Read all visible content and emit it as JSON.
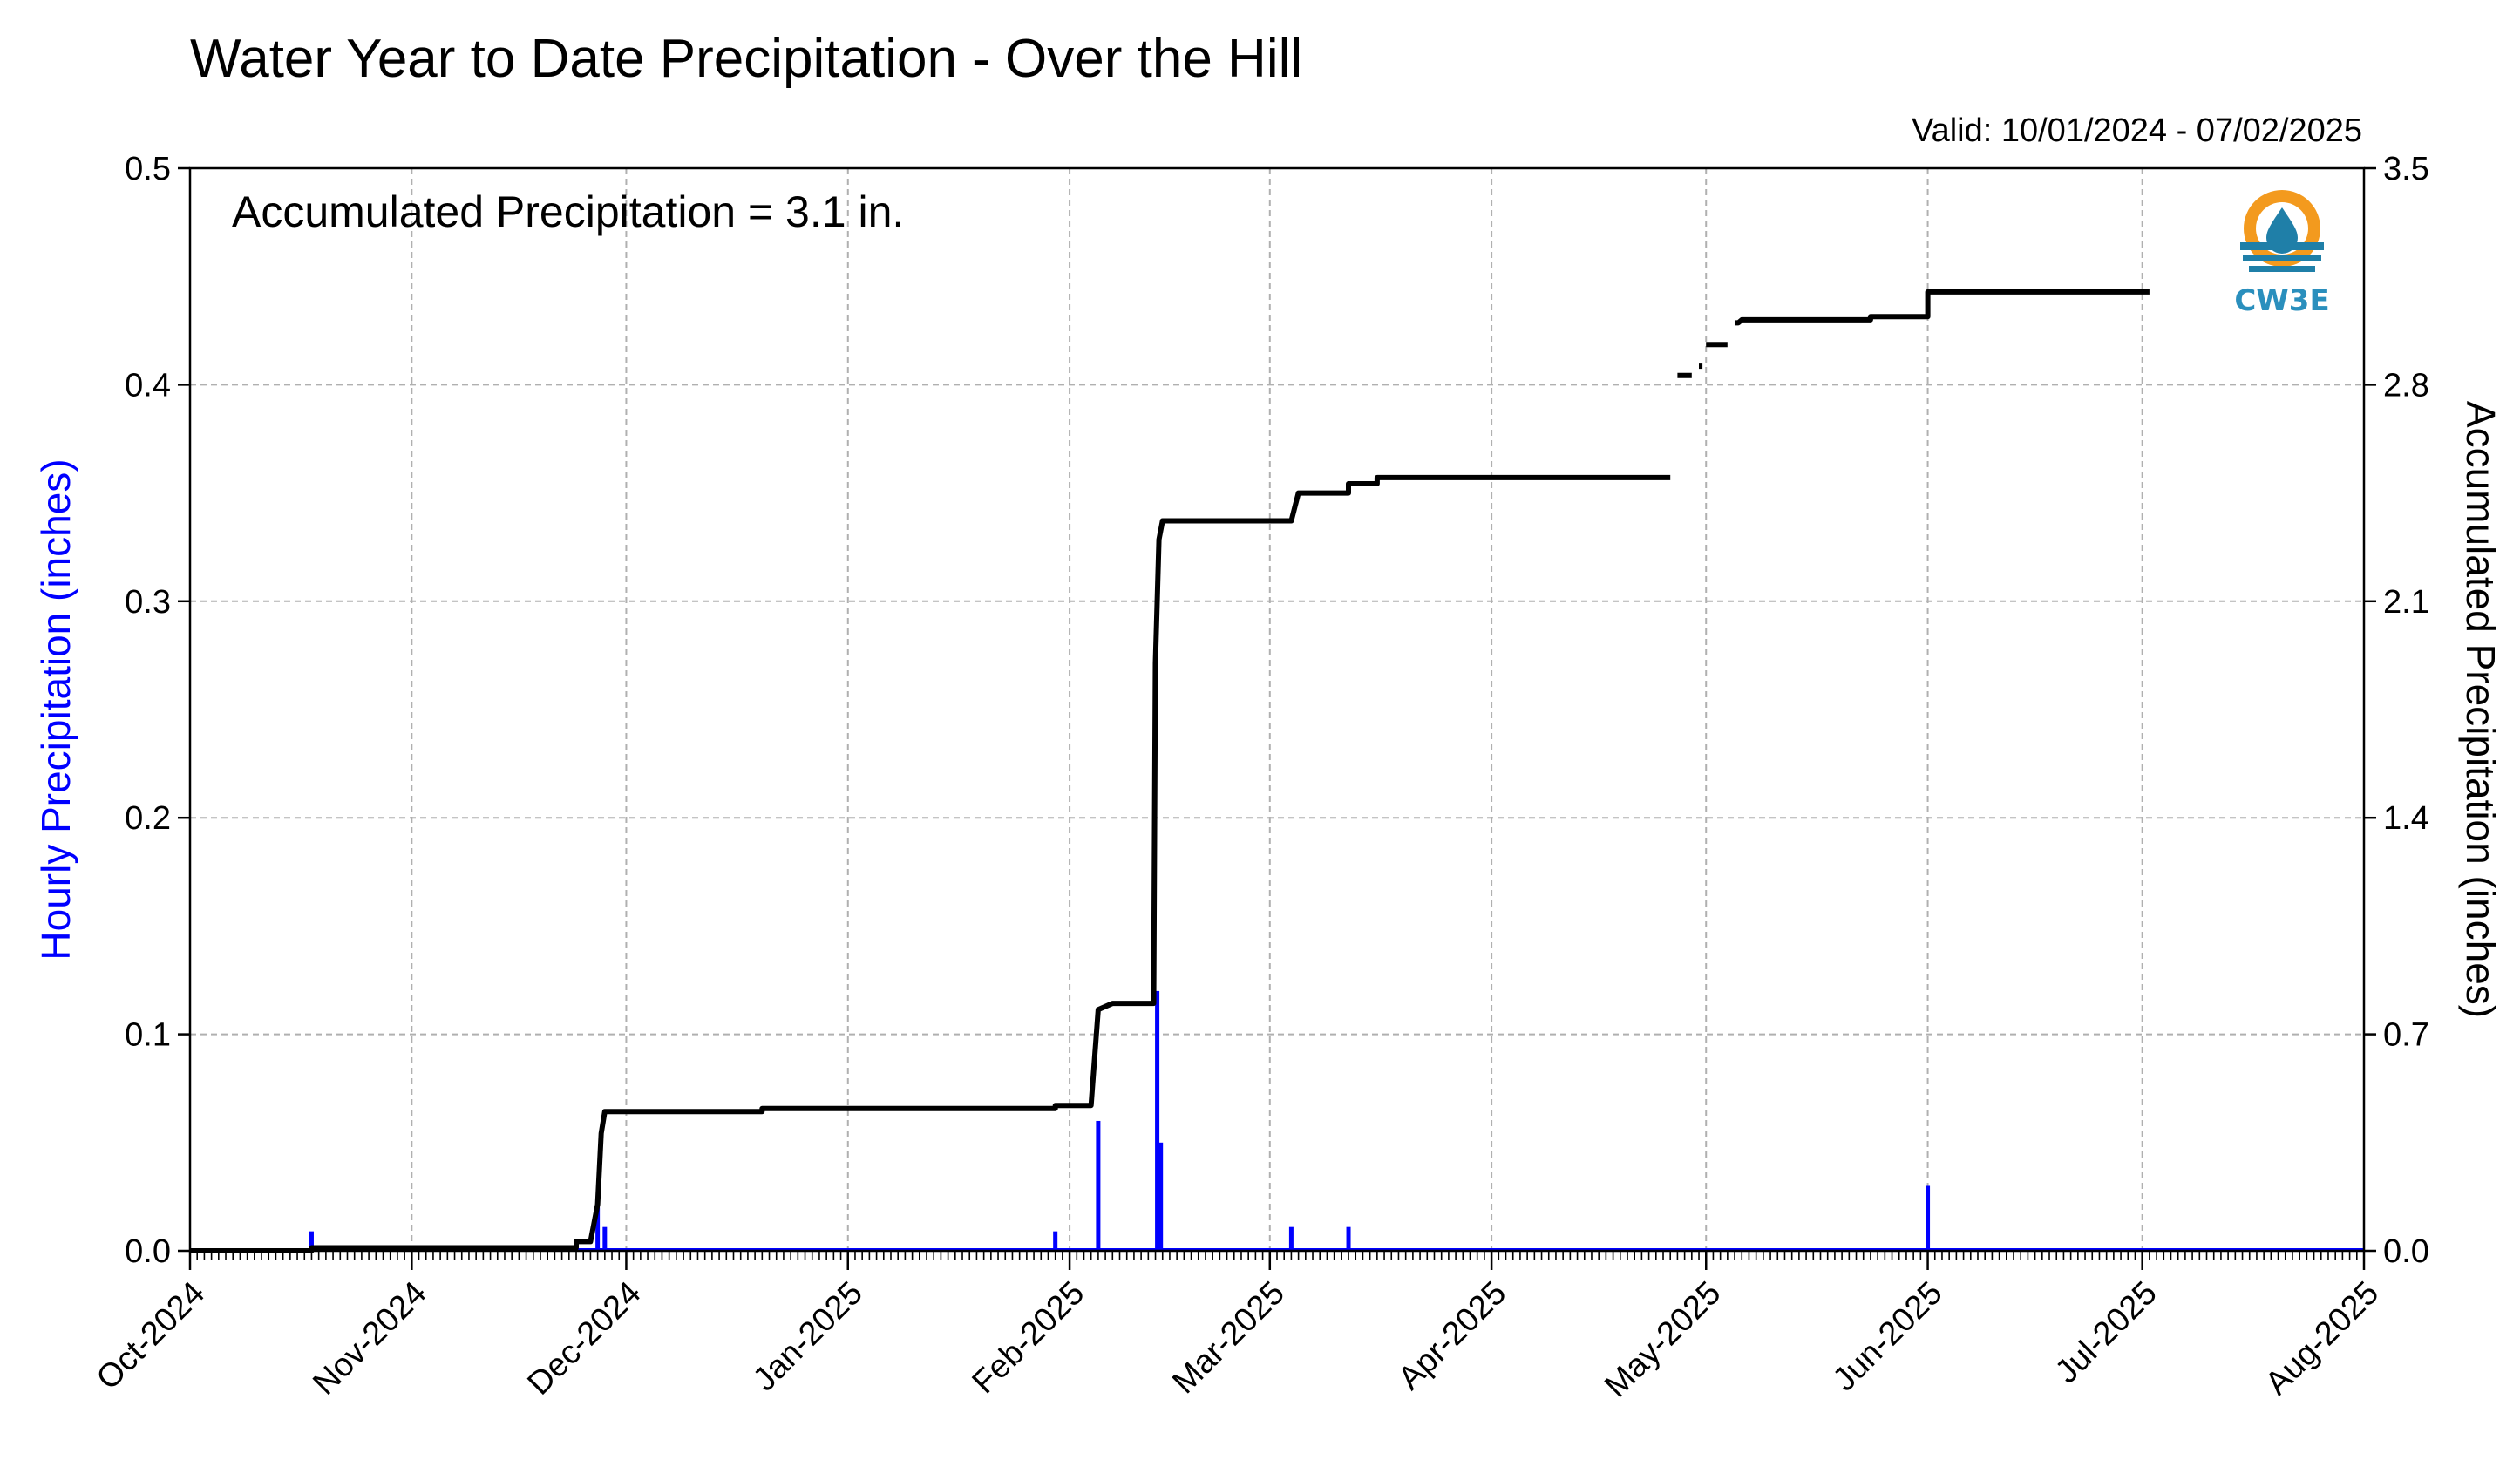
{
  "chart_data": {
    "type": "bar+line",
    "title": "Water Year to Date Precipitation - Over the Hill",
    "valid_label": "Valid: 10/01/2024 - 07/02/2025",
    "annotation": "Accumulated Precipitation = 3.1 in.",
    "ylabel_left": "Hourly Precipitation (inches)",
    "ylabel_right": "Accumulated Precipitation (inches)",
    "left_color": "#0000ff",
    "line_color": "#000000",
    "xlim": [
      "2024-10-01",
      "2025-08-01"
    ],
    "ylim_left": [
      0,
      0.5
    ],
    "ylim_right": [
      0,
      3.5
    ],
    "grid": true,
    "x_ticks": [
      {
        "date": "2024-10-01",
        "label": "Oct-2024"
      },
      {
        "date": "2024-11-01",
        "label": "Nov-2024"
      },
      {
        "date": "2024-12-01",
        "label": "Dec-2024"
      },
      {
        "date": "2025-01-01",
        "label": "Jan-2025"
      },
      {
        "date": "2025-02-01",
        "label": "Feb-2025"
      },
      {
        "date": "2025-03-01",
        "label": "Mar-2025"
      },
      {
        "date": "2025-04-01",
        "label": "Apr-2025"
      },
      {
        "date": "2025-05-01",
        "label": "May-2025"
      },
      {
        "date": "2025-06-01",
        "label": "Jun-2025"
      },
      {
        "date": "2025-07-01",
        "label": "Jul-2025"
      },
      {
        "date": "2025-08-01",
        "label": "Aug-2025"
      }
    ],
    "y_ticks_left": [
      "0.0",
      "0.1",
      "0.2",
      "0.3",
      "0.4",
      "0.5"
    ],
    "y_ticks_right": [
      "0.0",
      "0.7",
      "1.4",
      "2.1",
      "2.8",
      "3.5"
    ],
    "series": [
      {
        "name": "Hourly Precipitation",
        "axis": "left",
        "kind": "bar",
        "points": [
          {
            "x": "2024-10-18",
            "y": 0.009
          },
          {
            "x": "2024-11-27",
            "y": 0.02
          },
          {
            "x": "2024-11-28",
            "y": 0.011
          },
          {
            "x": "2025-01-30",
            "y": 0.009
          },
          {
            "x": "2025-02-05",
            "y": 0.06
          },
          {
            "x": "2025-02-13 06:00",
            "y": 0.12
          },
          {
            "x": "2025-02-13 18:00",
            "y": 0.05
          },
          {
            "x": "2025-03-04",
            "y": 0.011
          },
          {
            "x": "2025-03-12",
            "y": 0.011
          },
          {
            "x": "2025-06-01",
            "y": 0.03
          }
        ]
      },
      {
        "name": "Accumulated Precipitation",
        "axis": "right",
        "kind": "line",
        "segments": [
          [
            {
              "x": "2024-10-01",
              "y": 0.0
            },
            {
              "x": "2024-10-18",
              "y": 0.0
            },
            {
              "x": "2024-10-18",
              "y": 0.01
            },
            {
              "x": "2024-11-24",
              "y": 0.01
            },
            {
              "x": "2024-11-24",
              "y": 0.03
            },
            {
              "x": "2024-11-26",
              "y": 0.03
            },
            {
              "x": "2024-11-27",
              "y": 0.15
            },
            {
              "x": "2024-11-27 12:00",
              "y": 0.38
            },
            {
              "x": "2024-11-28",
              "y": 0.45
            },
            {
              "x": "2024-12-20",
              "y": 0.45
            },
            {
              "x": "2024-12-20",
              "y": 0.46
            },
            {
              "x": "2025-01-30",
              "y": 0.46
            },
            {
              "x": "2025-01-30",
              "y": 0.47
            },
            {
              "x": "2025-02-04",
              "y": 0.47
            },
            {
              "x": "2025-02-05",
              "y": 0.78
            },
            {
              "x": "2025-02-07",
              "y": 0.8
            },
            {
              "x": "2025-02-12 18:00",
              "y": 0.8
            },
            {
              "x": "2025-02-13",
              "y": 1.9
            },
            {
              "x": "2025-02-13 12:00",
              "y": 2.3
            },
            {
              "x": "2025-02-14",
              "y": 2.36
            },
            {
              "x": "2025-03-04",
              "y": 2.36
            },
            {
              "x": "2025-03-05",
              "y": 2.45
            },
            {
              "x": "2025-03-12",
              "y": 2.45
            },
            {
              "x": "2025-03-12",
              "y": 2.48
            },
            {
              "x": "2025-03-16",
              "y": 2.48
            },
            {
              "x": "2025-03-16",
              "y": 2.5
            },
            {
              "x": "2025-04-26",
              "y": 2.5
            }
          ],
          [
            {
              "x": "2025-04-27",
              "y": 2.83
            },
            {
              "x": "2025-04-29",
              "y": 2.83
            }
          ],
          [
            {
              "x": "2025-04-30",
              "y": 2.86
            },
            {
              "x": "2025-04-30 12:00",
              "y": 2.86
            }
          ],
          [
            {
              "x": "2025-05-01",
              "y": 2.93
            },
            {
              "x": "2025-05-04",
              "y": 2.93
            }
          ],
          [
            {
              "x": "2025-05-05",
              "y": 3.0
            },
            {
              "x": "2025-05-05 12:00",
              "y": 3.0
            },
            {
              "x": "2025-05-06",
              "y": 3.01
            },
            {
              "x": "2025-05-24",
              "y": 3.01
            },
            {
              "x": "2025-05-24",
              "y": 3.02
            },
            {
              "x": "2025-06-01",
              "y": 3.02
            },
            {
              "x": "2025-06-01",
              "y": 3.1
            },
            {
              "x": "2025-07-02",
              "y": 3.1
            }
          ]
        ]
      }
    ]
  },
  "logo": {
    "text": "CW3E",
    "colors": {
      "ring": "#f39a1e",
      "water": "#1f7fa8",
      "text": "#2a8fbd"
    }
  }
}
